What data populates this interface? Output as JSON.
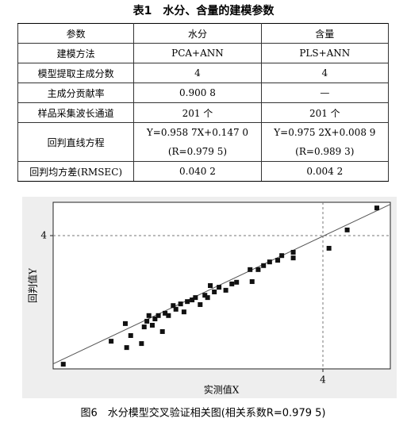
{
  "table": {
    "title": "表1　水分、含量的建模参数",
    "header": [
      "参数",
      "水分",
      "含量"
    ],
    "rows": [
      [
        "建模方法",
        "PCA+ANN",
        "PLS+ANN"
      ],
      [
        "模型提取主成分数",
        "4",
        "4"
      ],
      [
        "主成分贡献率",
        "0.900 8",
        "—"
      ],
      [
        "样品采集波长通道",
        "201 个",
        "201 个"
      ],
      [
        "回判直线方程",
        [
          "Y=0.958 7X+0.147 0",
          "(R=0.979 5)"
        ],
        [
          "Y=0.975 2X+0.008 9",
          "(R=0.989 3)"
        ]
      ],
      [
        "回判均方差(RMSEC)",
        "0.040 2",
        "0.004 2"
      ]
    ]
  },
  "chart_data": {
    "type": "scatter",
    "caption": "图6　水分模型交叉验证相关图(相关系数R=0.979 5)",
    "xlabel": "实测值X",
    "ylabel": "回判值Y",
    "color": "#111111",
    "x": [
      0.15,
      0.86,
      1.07,
      1.09,
      1.15,
      1.31,
      1.35,
      1.39,
      1.42,
      1.47,
      1.51,
      1.56,
      1.62,
      1.66,
      1.71,
      1.78,
      1.82,
      1.89,
      1.94,
      1.99,
      2.06,
      2.11,
      2.18,
      2.25,
      2.29,
      2.33,
      2.39,
      2.46,
      2.56,
      2.65,
      2.72,
      2.92,
      2.95,
      3.04,
      3.12,
      3.21,
      3.33,
      3.39,
      3.56,
      3.56,
      4.09,
      4.36,
      4.8
    ],
    "values": [
      0.14,
      0.83,
      1.36,
      0.64,
      1.0,
      0.76,
      1.26,
      1.43,
      1.6,
      1.31,
      1.5,
      1.6,
      1.12,
      1.67,
      1.6,
      1.9,
      1.79,
      1.95,
      1.71,
      2.02,
      2.07,
      2.14,
      1.93,
      2.21,
      2.14,
      2.5,
      2.31,
      2.45,
      2.36,
      2.55,
      2.6,
      2.98,
      2.62,
      2.98,
      3.1,
      3.21,
      3.26,
      3.4,
      3.5,
      3.33,
      3.62,
      4.17,
      4.83
    ],
    "fit_line": {
      "x": [
        0,
        5
      ],
      "y": [
        0.15,
        4.94
      ]
    },
    "xlim": [
      0,
      5
    ],
    "ylim": [
      0,
      5
    ],
    "xticks": [
      4
    ],
    "yticks": [
      4
    ],
    "grid": true
  }
}
